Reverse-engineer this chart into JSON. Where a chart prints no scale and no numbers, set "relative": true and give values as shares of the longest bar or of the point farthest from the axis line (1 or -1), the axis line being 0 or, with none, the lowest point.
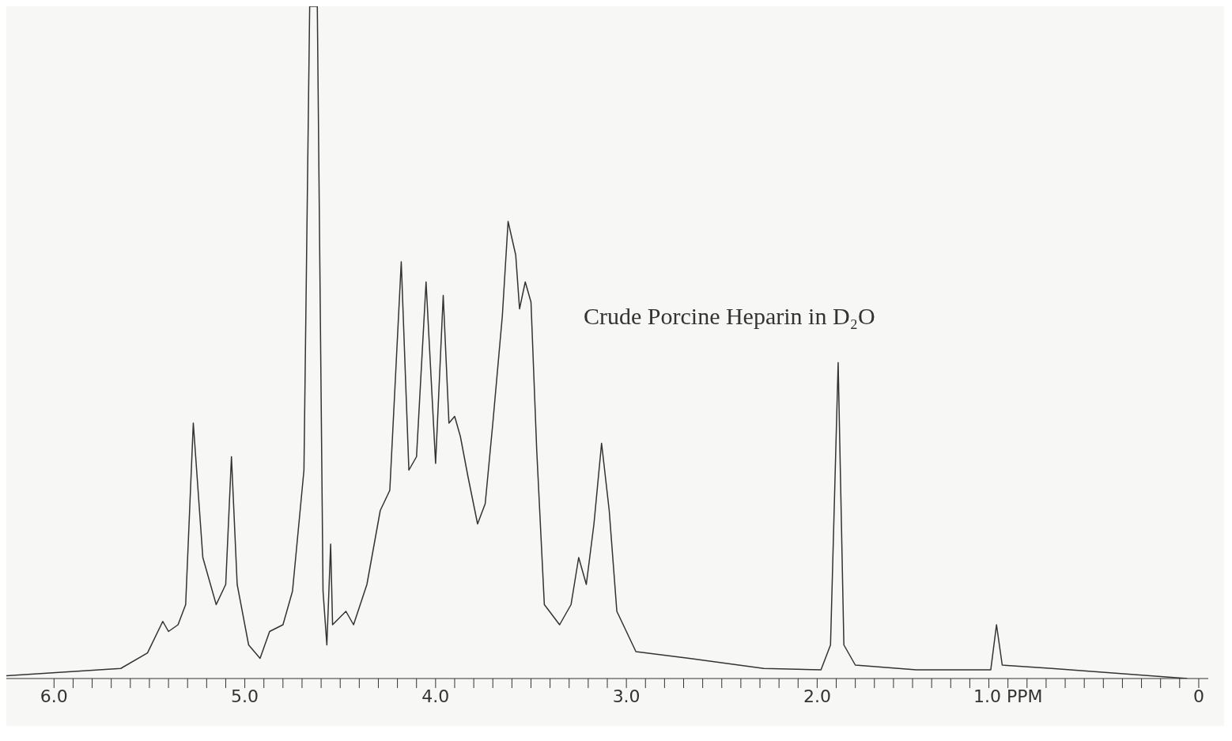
{
  "chart_data": {
    "type": "line",
    "relative": true,
    "annotations": [
      "Crude Porcine Heparin in D₂O"
    ],
    "xlim": [
      6.25,
      -0.05
    ],
    "xticks": [
      {
        "value": 6,
        "label": "6.0"
      },
      {
        "value": 5.9,
        "label": null
      },
      {
        "value": 5.8,
        "label": null
      },
      {
        "value": 5.7,
        "label": null
      },
      {
        "value": 5.6,
        "label": null
      },
      {
        "value": 5.5,
        "label": null
      },
      {
        "value": 5.4,
        "label": null
      },
      {
        "value": 5.3,
        "label": null
      },
      {
        "value": 5.2,
        "label": null
      },
      {
        "value": 5.1,
        "label": null
      },
      {
        "value": 5,
        "label": "5.0"
      },
      {
        "value": 4.9,
        "label": null
      },
      {
        "value": 4.8,
        "label": null
      },
      {
        "value": 4.7,
        "label": null
      },
      {
        "value": 4.6,
        "label": null
      },
      {
        "value": 4.5,
        "label": null
      },
      {
        "value": 4.4,
        "label": null
      },
      {
        "value": 4.3,
        "label": null
      },
      {
        "value": 4.2,
        "label": null
      },
      {
        "value": 4.1,
        "label": null
      },
      {
        "value": 4,
        "label": "4.0"
      },
      {
        "value": 3.9,
        "label": null
      },
      {
        "value": 3.8,
        "label": null
      },
      {
        "value": 3.7,
        "label": null
      },
      {
        "value": 3.6,
        "label": null
      },
      {
        "value": 3.5,
        "label": null
      },
      {
        "value": 3.4,
        "label": null
      },
      {
        "value": 3.3,
        "label": null
      },
      {
        "value": 3.2,
        "label": null
      },
      {
        "value": 3.1,
        "label": null
      },
      {
        "value": 3,
        "label": "3.0"
      },
      {
        "value": 2.9,
        "label": null
      },
      {
        "value": 2.8,
        "label": null
      },
      {
        "value": 2.7,
        "label": null
      },
      {
        "value": 2.6,
        "label": null
      },
      {
        "value": 2.5,
        "label": null
      },
      {
        "value": 2.4,
        "label": null
      },
      {
        "value": 2.3,
        "label": null
      },
      {
        "value": 2.2,
        "label": null
      },
      {
        "value": 2.1,
        "label": null
      },
      {
        "value": 2,
        "label": "2.0"
      },
      {
        "value": 1.9,
        "label": null
      },
      {
        "value": 1.8,
        "label": null
      },
      {
        "value": 1.7,
        "label": null
      },
      {
        "value": 1.6,
        "label": null
      },
      {
        "value": 1.5,
        "label": null
      },
      {
        "value": 1.4,
        "label": null
      },
      {
        "value": 1.3,
        "label": null
      },
      {
        "value": 1.2,
        "label": null
      },
      {
        "value": 1.1,
        "label": null
      },
      {
        "value": 1,
        "label": "1.0 PPM"
      },
      {
        "value": 0.9,
        "label": null
      },
      {
        "value": 0.8,
        "label": null
      },
      {
        "value": 0.7,
        "label": null
      },
      {
        "value": 0.6,
        "label": null
      },
      {
        "value": 0.5,
        "label": null
      },
      {
        "value": 0.4,
        "label": null
      },
      {
        "value": 0.3,
        "label": null
      },
      {
        "value": 0.2,
        "label": null
      },
      {
        "value": 0.1,
        "label": null
      },
      {
        "value": 0,
        "label": "0"
      }
    ],
    "series": [
      {
        "color": "#333333",
        "x": [
          6.25,
          5.65,
          5.51,
          5.43,
          5.4,
          5.35,
          5.31,
          5.27,
          5.22,
          5.15,
          5.1,
          5.07,
          5.04,
          4.98,
          4.92,
          4.87,
          4.8,
          4.75,
          4.69,
          4.66,
          4.62,
          4.59,
          4.57,
          4.55,
          4.54,
          4.47,
          4.43,
          4.36,
          4.29,
          4.24,
          4.18,
          4.14,
          4.1,
          4.05,
          4.0,
          3.96,
          3.93,
          3.9,
          3.87,
          3.83,
          3.78,
          3.74,
          3.7,
          3.65,
          3.62,
          3.58,
          3.56,
          3.53,
          3.5,
          3.47,
          3.43,
          3.35,
          3.29,
          3.25,
          3.21,
          3.17,
          3.13,
          3.09,
          3.05,
          2.95,
          2.67,
          2.28,
          1.98,
          1.93,
          1.89,
          1.86,
          1.8,
          1.48,
          1.09,
          1.06,
          1.03,
          0.77,
          0.06
        ],
        "values": [
          0.004,
          0.015,
          0.038,
          0.085,
          0.07,
          0.08,
          0.11,
          0.38,
          0.18,
          0.11,
          0.14,
          0.33,
          0.14,
          0.05,
          0.03,
          0.07,
          0.08,
          0.13,
          0.31,
          1,
          1,
          0.13,
          0.05,
          0.2,
          0.08,
          0.1,
          0.08,
          0.14,
          0.25,
          0.28,
          0.62,
          0.31,
          0.33,
          0.59,
          0.32,
          0.57,
          0.38,
          0.39,
          0.36,
          0.3,
          0.23,
          0.26,
          0.38,
          0.54,
          0.68,
          0.63,
          0.55,
          0.59,
          0.56,
          0.34,
          0.11,
          0.08,
          0.11,
          0.18,
          0.14,
          0.23,
          0.35,
          0.25,
          0.1,
          0.04,
          0.03,
          0.015,
          0.013,
          0.05,
          0.47,
          0.05,
          0.02,
          0.013,
          0.013,
          0.08,
          0.02,
          0.015,
          0
        ]
      }
    ]
  }
}
